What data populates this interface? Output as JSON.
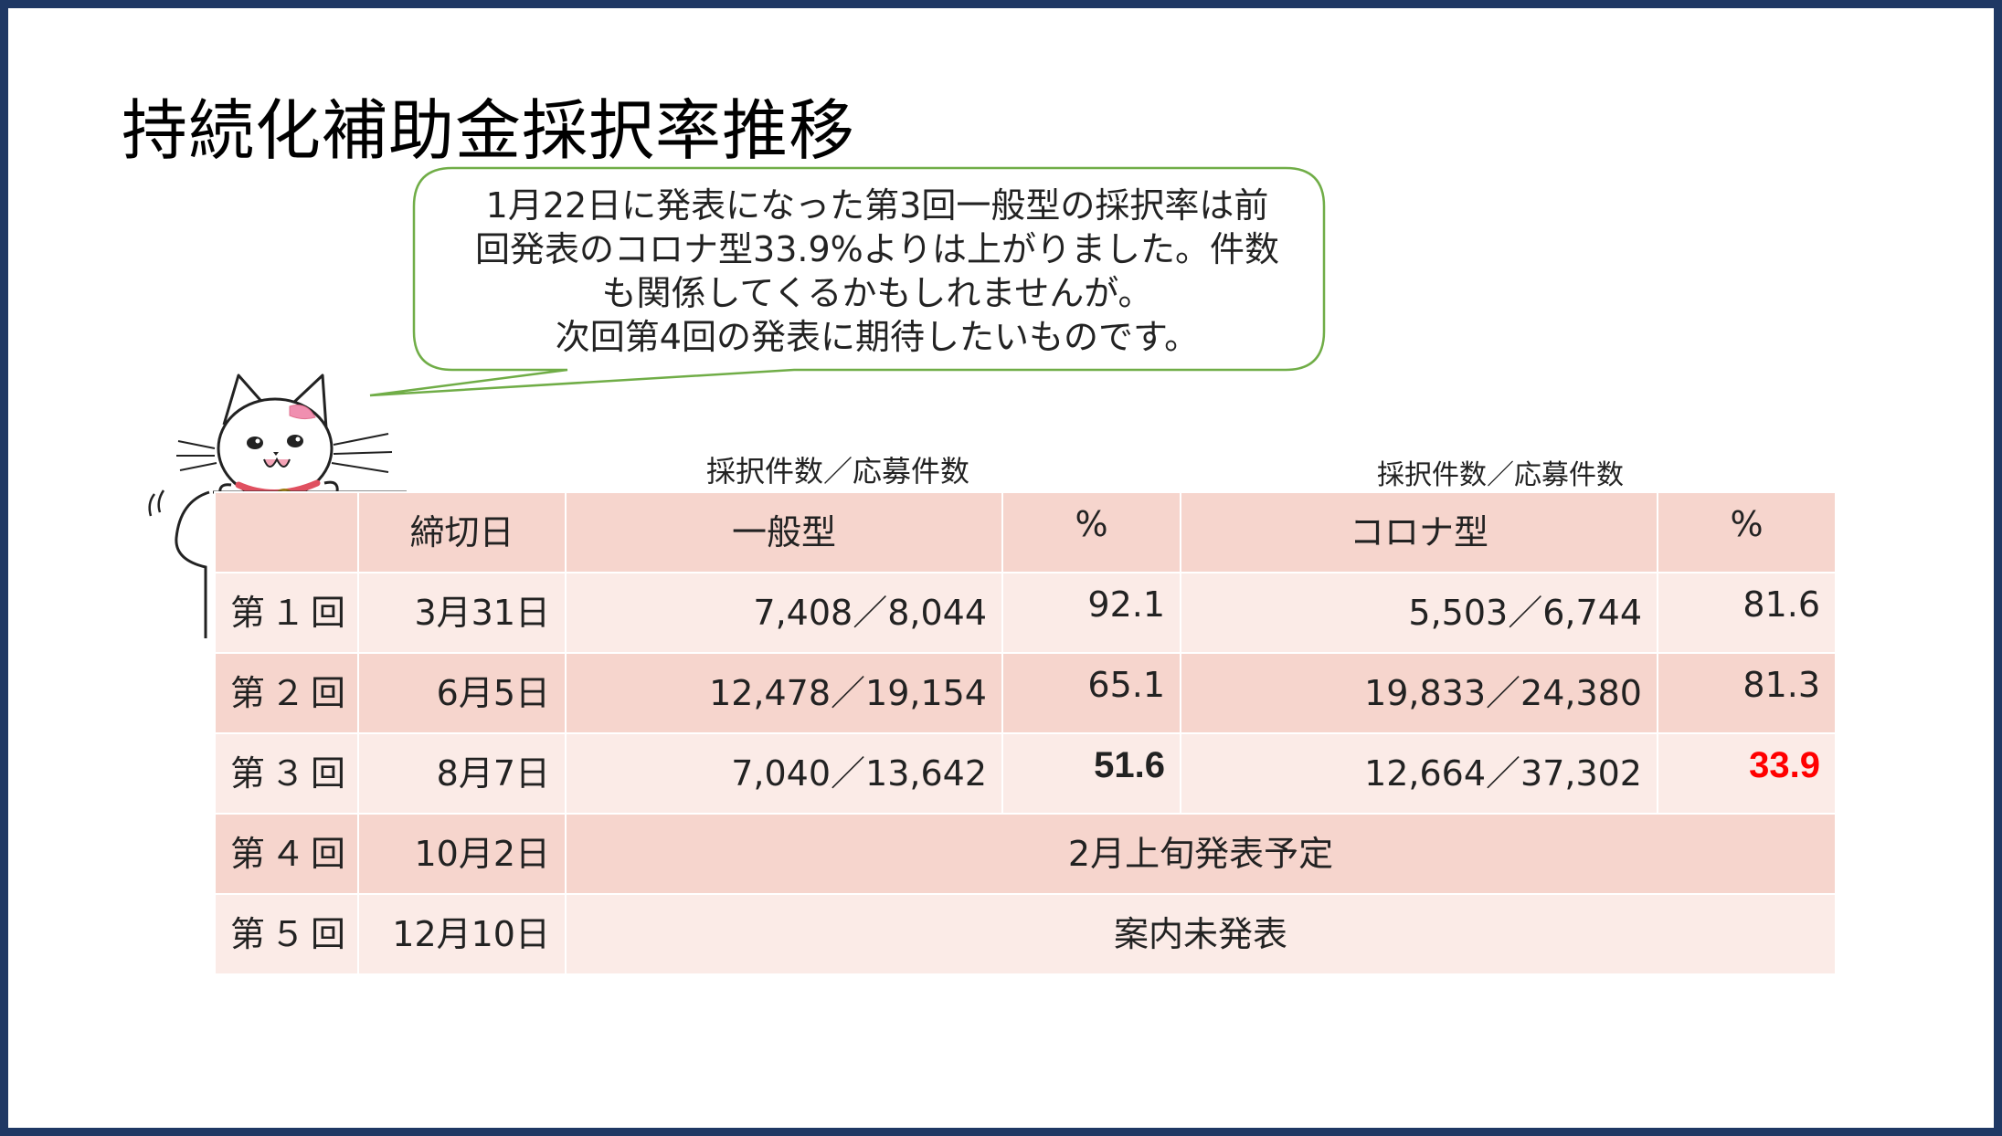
{
  "title": "持続化補助金採択率推移",
  "speech_bubble": {
    "lines": [
      "1月22日に発表になった第3回一般型の採択率は前",
      "回発表のコロナ型33.9%よりは上がりました。件数",
      "も関係してくるかもしれませんが。",
      "次回第4回の発表に期待したいものです。"
    ]
  },
  "captions": {
    "ippan": "採択件数／応募件数",
    "corona": "採択件数／応募件数"
  },
  "table": {
    "headers": [
      "",
      "締切日",
      "一般型",
      "%",
      "コロナ型",
      "%"
    ],
    "rows": [
      {
        "round": "第１回",
        "deadline": "3月31日",
        "ippan": "7,408／8,044",
        "ippan_pct": "92.1",
        "corona": "5,503／6,744",
        "corona_pct": "81.6"
      },
      {
        "round": "第２回",
        "deadline": "6月5日",
        "ippan": "12,478／19,154",
        "ippan_pct": "65.1",
        "corona": "19,833／24,380",
        "corona_pct": "81.3"
      },
      {
        "round": "第３回",
        "deadline": "8月7日",
        "ippan": "7,040／13,642",
        "ippan_pct": "51.6",
        "corona": "12,664／37,302",
        "corona_pct": "33.9"
      },
      {
        "round": "第４回",
        "deadline": "10月2日",
        "note": "2月上旬発表予定"
      },
      {
        "round": "第５回",
        "deadline": "12月10日",
        "note": "案内未発表"
      }
    ]
  },
  "colors": {
    "header_row": "#f6d5cd",
    "alt_row": "#fbebe7",
    "highlight_red": "#ff0000",
    "border": "#1f3864",
    "bubble_outline": "#70ad47"
  }
}
